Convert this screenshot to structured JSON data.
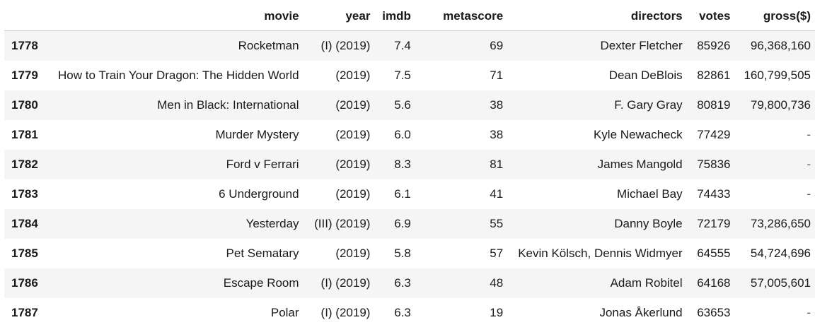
{
  "table": {
    "columns": [
      "movie",
      "year",
      "imdb",
      "metascore",
      "directors",
      "votes",
      "gross($)"
    ],
    "rows": [
      {
        "index": "1778",
        "movie": "Rocketman",
        "year": "(I) (2019)",
        "imdb": "7.4",
        "metascore": "69",
        "directors": "Dexter Fletcher",
        "votes": "85926",
        "gross": "96,368,160"
      },
      {
        "index": "1779",
        "movie": "How to Train Your Dragon: The Hidden World",
        "year": "(2019)",
        "imdb": "7.5",
        "metascore": "71",
        "directors": "Dean DeBlois",
        "votes": "82861",
        "gross": "160,799,505"
      },
      {
        "index": "1780",
        "movie": "Men in Black: International",
        "year": "(2019)",
        "imdb": "5.6",
        "metascore": "38",
        "directors": "F. Gary Gray",
        "votes": "80819",
        "gross": "79,800,736"
      },
      {
        "index": "1781",
        "movie": "Murder Mystery",
        "year": "(2019)",
        "imdb": "6.0",
        "metascore": "38",
        "directors": "Kyle Newacheck",
        "votes": "77429",
        "gross": "-"
      },
      {
        "index": "1782",
        "movie": "Ford v Ferrari",
        "year": "(2019)",
        "imdb": "8.3",
        "metascore": "81",
        "directors": "James Mangold",
        "votes": "75836",
        "gross": "-"
      },
      {
        "index": "1783",
        "movie": "6 Underground",
        "year": "(2019)",
        "imdb": "6.1",
        "metascore": "41",
        "directors": "Michael Bay",
        "votes": "74433",
        "gross": "-"
      },
      {
        "index": "1784",
        "movie": "Yesterday",
        "year": "(III) (2019)",
        "imdb": "6.9",
        "metascore": "55",
        "directors": "Danny Boyle",
        "votes": "72179",
        "gross": "73,286,650"
      },
      {
        "index": "1785",
        "movie": "Pet Sematary",
        "year": "(2019)",
        "imdb": "5.8",
        "metascore": "57",
        "directors": "Kevin Kölsch, Dennis Widmyer",
        "votes": "64555",
        "gross": "54,724,696"
      },
      {
        "index": "1786",
        "movie": "Escape Room",
        "year": "(I) (2019)",
        "imdb": "6.3",
        "metascore": "48",
        "directors": "Adam Robitel",
        "votes": "64168",
        "gross": "57,005,601"
      },
      {
        "index": "1787",
        "movie": "Polar",
        "year": "(I) (2019)",
        "imdb": "6.3",
        "metascore": "19",
        "directors": "Jonas Åkerlund",
        "votes": "63653",
        "gross": "-"
      }
    ]
  }
}
